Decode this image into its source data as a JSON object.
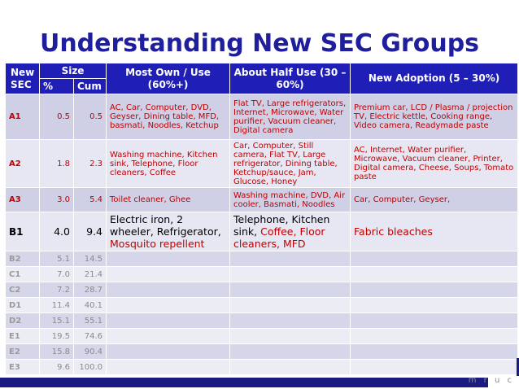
{
  "title": "Understanding New SEC Groups",
  "headers": {
    "new_sec": "New SEC",
    "size": "Size",
    "pct": "%",
    "cum": "Cum",
    "most_own": "Most Own / Use (60%+)",
    "about_half": "About Half Use (30 – 60%)",
    "new_adoption": "New Adoption (5 – 30%)"
  },
  "rows": [
    {
      "sec": "A1",
      "pct": "0.5",
      "cum": "0.5",
      "most": "AC, Car, Computer, DVD, Geyser, Dining table, MFD, basmati, Noodles, Ketchup",
      "half": "Flat TV, Large refrigerators, Internet, Microwave, Water purifier, Vacuum cleaner, Digital camera",
      "new": "Premium car, LCD / Plasma / projection TV, Electric kettle, Cooking range, Video camera, Readymade paste"
    },
    {
      "sec": "A2",
      "pct": "1.8",
      "cum": "2.3",
      "most": "Washing machine, Kitchen sink, Telephone, Floor cleaners, Coffee",
      "half": "Car, Computer, Still camera, Flat TV, Large refrigerator, Dining table, Ketchup/sauce, Jam, Glucose, Honey",
      "new": "AC, Internet, Water purifier, Microwave, Vacuum cleaner, Printer, Digital camera, Cheese, Soups, Tomato paste"
    },
    {
      "sec": "A3",
      "pct": "3.0",
      "cum": "5.4",
      "most": "Toilet cleaner, Ghee",
      "half": "Washing machine, DVD, Air cooler, Basmati, Noodles",
      "new": "Car, Computer, Geyser,"
    },
    {
      "sec": "B1",
      "pct": "4.0",
      "cum": "9.4",
      "most_a": "Electric iron, 2 wheeler, Refrigerator,",
      "most_b": "Mosquito repellent",
      "half_a": "Telephone, Kitchen sink,",
      "half_b": "Coffee, Floor cleaners,",
      "half_c": "MFD",
      "new": "Fabric bleaches"
    },
    {
      "sec": "B2",
      "pct": "5.1",
      "cum": "14.5"
    },
    {
      "sec": "C1",
      "pct": "7.0",
      "cum": "21.4"
    },
    {
      "sec": "C2",
      "pct": "7.2",
      "cum": "28.7"
    },
    {
      "sec": "D1",
      "pct": "11.4",
      "cum": "40.1"
    },
    {
      "sec": "D2",
      "pct": "15.1",
      "cum": "55.1"
    },
    {
      "sec": "E1",
      "pct": "19.5",
      "cum": "74.6"
    },
    {
      "sec": "E2",
      "pct": "15.8",
      "cum": "90.4"
    },
    {
      "sec": "E3",
      "pct": "9.6",
      "cum": "100.0"
    }
  ],
  "footer_text": "m r u c"
}
